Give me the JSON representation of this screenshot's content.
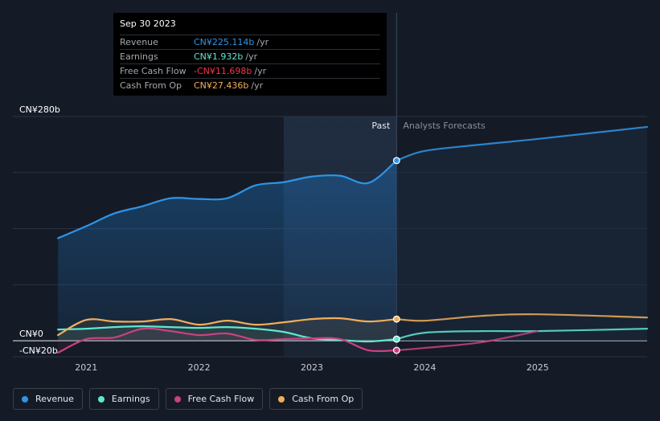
{
  "tooltip": {
    "date": "Sep 30 2023",
    "rows": [
      {
        "label": "Revenue",
        "value": "CN¥225.114b",
        "unit": "/yr",
        "color": "#2f95e6"
      },
      {
        "label": "Earnings",
        "value": "CN¥1.932b",
        "unit": "/yr",
        "color": "#5ee8cf"
      },
      {
        "label": "Free Cash Flow",
        "value": "-CN¥11.698b",
        "unit": "/yr",
        "color": "#f0364b"
      },
      {
        "label": "Cash From Op",
        "value": "CN¥27.436b",
        "unit": "/yr",
        "color": "#f0ae59"
      }
    ]
  },
  "legend": [
    {
      "label": "Revenue",
      "color": "#2f95e6"
    },
    {
      "label": "Earnings",
      "color": "#5ee8cf"
    },
    {
      "label": "Free Cash Flow",
      "color": "#c9427f"
    },
    {
      "label": "Cash From Op",
      "color": "#f0ae59"
    }
  ],
  "chart_data": {
    "type": "line",
    "ylim": [
      -20,
      280
    ],
    "xlim": [
      2020.35,
      2025.97
    ],
    "y_tick_labels": [
      {
        "value": 280,
        "label": "CN¥280b"
      },
      {
        "value": 0,
        "label": "CN¥0"
      },
      {
        "value": -20,
        "label": "-CN¥20b"
      }
    ],
    "x_ticks": [
      {
        "value": 2021,
        "label": "2021"
      },
      {
        "value": 2022,
        "label": "2022"
      },
      {
        "value": 2023,
        "label": "2023"
      },
      {
        "value": 2024,
        "label": "2024"
      },
      {
        "value": 2025,
        "label": "2025"
      }
    ],
    "past_label": "Past",
    "forecast_label": "Analysts Forecasts",
    "divider_x": 2023.75,
    "highlight_start_x": 2022.75,
    "grid": true,
    "series": [
      {
        "name": "Revenue",
        "color": "#2f95e6",
        "fill": true,
        "past": [
          [
            2020.75,
            128
          ],
          [
            2021.0,
            143
          ],
          [
            2021.25,
            159
          ],
          [
            2021.5,
            168
          ],
          [
            2021.75,
            178
          ],
          [
            2022.0,
            177
          ],
          [
            2022.25,
            178
          ],
          [
            2022.5,
            194
          ],
          [
            2022.75,
            198
          ],
          [
            2023.0,
            205
          ],
          [
            2023.25,
            206
          ],
          [
            2023.5,
            197
          ],
          [
            2023.75,
            225
          ]
        ],
        "forecast": [
          [
            2023.75,
            225
          ],
          [
            2024.0,
            237
          ],
          [
            2024.5,
            245
          ],
          [
            2025.0,
            252
          ],
          [
            2025.97,
            267
          ]
        ]
      },
      {
        "name": "Earnings",
        "color": "#5ee8cf",
        "past": [
          [
            2020.75,
            14
          ],
          [
            2021.0,
            15
          ],
          [
            2021.25,
            17
          ],
          [
            2021.5,
            18
          ],
          [
            2021.75,
            17
          ],
          [
            2022.0,
            16
          ],
          [
            2022.25,
            17
          ],
          [
            2022.5,
            15
          ],
          [
            2022.75,
            11
          ],
          [
            2023.0,
            3
          ],
          [
            2023.25,
            1
          ],
          [
            2023.5,
            -1
          ],
          [
            2023.75,
            2
          ]
        ],
        "forecast": [
          [
            2023.75,
            2
          ],
          [
            2024.0,
            10
          ],
          [
            2024.5,
            12
          ],
          [
            2025.0,
            12
          ],
          [
            2025.97,
            15
          ]
        ]
      },
      {
        "name": "Free Cash Flow",
        "color": "#c9427f",
        "past": [
          [
            2020.75,
            -15
          ],
          [
            2021.0,
            2
          ],
          [
            2021.25,
            4
          ],
          [
            2021.5,
            15
          ],
          [
            2021.75,
            12
          ],
          [
            2022.0,
            7
          ],
          [
            2022.25,
            9
          ],
          [
            2022.5,
            1
          ],
          [
            2022.75,
            2
          ],
          [
            2023.0,
            3
          ],
          [
            2023.25,
            2
          ],
          [
            2023.5,
            -12
          ],
          [
            2023.75,
            -12
          ]
        ],
        "forecast": [
          [
            2023.75,
            -12
          ],
          [
            2024.0,
            -9
          ],
          [
            2024.5,
            -2
          ],
          [
            2025.0,
            12
          ]
        ]
      },
      {
        "name": "Cash From Op",
        "color": "#f0ae59",
        "past": [
          [
            2020.75,
            7
          ],
          [
            2021.0,
            26
          ],
          [
            2021.25,
            24
          ],
          [
            2021.5,
            24
          ],
          [
            2021.75,
            27
          ],
          [
            2022.0,
            20
          ],
          [
            2022.25,
            25
          ],
          [
            2022.5,
            20
          ],
          [
            2022.75,
            23
          ],
          [
            2023.0,
            27
          ],
          [
            2023.25,
            28
          ],
          [
            2023.5,
            24
          ],
          [
            2023.75,
            27
          ]
        ],
        "forecast": [
          [
            2023.75,
            27
          ],
          [
            2024.0,
            25
          ],
          [
            2024.5,
            31
          ],
          [
            2025.0,
            33
          ],
          [
            2025.97,
            29
          ]
        ]
      }
    ]
  }
}
